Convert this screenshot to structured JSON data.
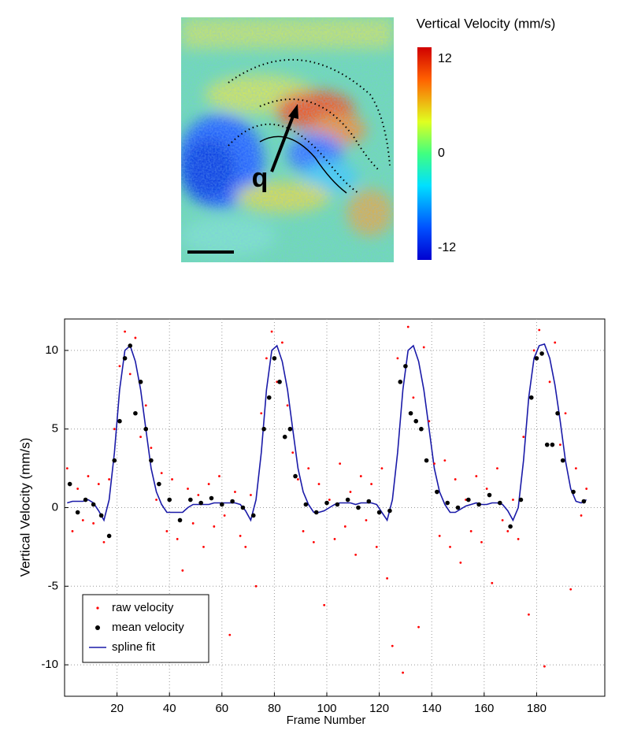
{
  "chart_data": [
    {
      "type": "image",
      "colorbar_title": "Vertical Velocity (mm/s)",
      "clim": [
        -13.5,
        13.5
      ],
      "cticks": [
        12,
        0,
        -12
      ],
      "annotation": "q"
    },
    {
      "type": "line",
      "xlabel": "Frame Number",
      "ylabel": "Vertical Velocity (mm/s)",
      "xlim": [
        0,
        206
      ],
      "ylim": [
        -12,
        12
      ],
      "xticks": [
        20,
        40,
        60,
        80,
        100,
        120,
        140,
        160,
        180
      ],
      "yticks": [
        -10,
        -5,
        0,
        5,
        10
      ],
      "grid": true,
      "legend": "lower left",
      "series": [
        {
          "name": "raw velocity",
          "kind": "scatter",
          "color": "#ff0000",
          "x": [
            1,
            3,
            5,
            7,
            9,
            11,
            13,
            15,
            17,
            19,
            21,
            23,
            25,
            27,
            29,
            31,
            33,
            35,
            37,
            39,
            41,
            43,
            45,
            47,
            49,
            51,
            53,
            55,
            57,
            59,
            61,
            63,
            65,
            67,
            69,
            71,
            73,
            75,
            77,
            79,
            81,
            83,
            85,
            87,
            89,
            91,
            93,
            95,
            97,
            99,
            101,
            103,
            105,
            107,
            109,
            111,
            113,
            115,
            117,
            119,
            121,
            123,
            125,
            127,
            129,
            131,
            133,
            135,
            137,
            139,
            141,
            143,
            145,
            147,
            149,
            151,
            153,
            155,
            157,
            159,
            161,
            163,
            165,
            167,
            169,
            171,
            173,
            175,
            177,
            179,
            181,
            183,
            185,
            187,
            189,
            191,
            193,
            195,
            197,
            199
          ],
          "values": [
            2.5,
            -1.5,
            1.2,
            -0.8,
            2.0,
            -1.0,
            1.5,
            -2.2,
            1.8,
            5.0,
            9.0,
            11.2,
            8.5,
            10.8,
            4.5,
            6.5,
            3.8,
            0.5,
            2.2,
            -1.5,
            1.8,
            -2.0,
            -4.0,
            1.2,
            -1.0,
            0.8,
            -2.5,
            1.5,
            -1.2,
            2.0,
            -0.5,
            -8.1,
            1.0,
            -1.8,
            -2.5,
            0.8,
            -5.0,
            6.0,
            9.5,
            11.2,
            8.0,
            10.5,
            6.5,
            3.5,
            1.8,
            -1.5,
            2.5,
            -2.2,
            1.5,
            -6.2,
            0.5,
            -2.0,
            2.8,
            -1.2,
            1.0,
            -3.0,
            2.0,
            -0.8,
            1.5,
            -2.5,
            2.5,
            -4.5,
            -8.8,
            9.5,
            -10.5,
            11.5,
            7.0,
            -7.6,
            10.2,
            5.5,
            2.8,
            -1.8,
            3.0,
            -2.5,
            1.8,
            -3.5,
            0.5,
            -1.5,
            2.0,
            -2.2,
            1.2,
            -4.8,
            2.5,
            -0.8,
            -1.5,
            0.5,
            -2.0,
            4.5,
            -6.8,
            10.0,
            11.3,
            -10.1,
            8.0,
            10.5,
            4.0,
            6.0,
            -5.2,
            2.5,
            -0.5,
            1.2
          ]
        },
        {
          "name": "mean velocity",
          "kind": "scatter",
          "color": "#000000",
          "x": [
            2,
            5,
            8,
            11,
            14,
            17,
            19,
            21,
            23,
            25,
            27,
            29,
            31,
            33,
            36,
            40,
            44,
            48,
            52,
            56,
            60,
            64,
            68,
            72,
            76,
            78,
            80,
            82,
            84,
            86,
            88,
            92,
            96,
            100,
            104,
            108,
            112,
            116,
            120,
            124,
            128,
            130,
            132,
            134,
            136,
            138,
            142,
            146,
            150,
            154,
            158,
            162,
            166,
            170,
            174,
            178,
            180,
            182,
            184,
            186,
            188,
            190,
            194,
            198
          ],
          "values": [
            1.5,
            -0.3,
            0.5,
            0.2,
            -0.5,
            -1.8,
            3,
            5.5,
            9.5,
            10.3,
            6,
            8,
            5,
            3,
            1.5,
            0.5,
            -0.8,
            0.5,
            0.3,
            0.6,
            0.2,
            0.4,
            0,
            -0.5,
            5,
            7,
            9.5,
            8,
            4.5,
            5,
            2,
            0.2,
            -0.3,
            0.3,
            0.2,
            0.5,
            0,
            0.4,
            -0.3,
            -0.2,
            8,
            9,
            6,
            5.5,
            5,
            3,
            1,
            0.3,
            0,
            0.5,
            0.2,
            0.8,
            0.3,
            -1.2,
            0.5,
            7,
            9.5,
            9.8,
            4,
            4,
            6,
            3,
            1,
            0.4
          ]
        },
        {
          "name": "spline fit",
          "kind": "line",
          "color": "#1a1aa8",
          "x": [
            1,
            3,
            5,
            7,
            9,
            11,
            13,
            15,
            17,
            19,
            21,
            23,
            25,
            27,
            29,
            31,
            33,
            35,
            37,
            39,
            41,
            43,
            45,
            47,
            49,
            51,
            53,
            55,
            57,
            59,
            61,
            63,
            65,
            67,
            69,
            71,
            73,
            75,
            77,
            79,
            81,
            83,
            85,
            87,
            89,
            91,
            93,
            95,
            97,
            99,
            101,
            103,
            105,
            107,
            109,
            111,
            113,
            115,
            117,
            119,
            121,
            123,
            125,
            127,
            129,
            131,
            133,
            135,
            137,
            139,
            141,
            143,
            145,
            147,
            149,
            151,
            153,
            155,
            157,
            159,
            161,
            163,
            165,
            167,
            169,
            171,
            173,
            175,
            177,
            179,
            181,
            183,
            185,
            187,
            189,
            191,
            193,
            195,
            197,
            199
          ],
          "values": [
            0.3,
            0.4,
            0.4,
            0.4,
            0.5,
            0.3,
            -0.2,
            -0.8,
            0.5,
            3.5,
            7.5,
            10.0,
            10.3,
            9.3,
            7.5,
            5.0,
            2.5,
            1.0,
            0.2,
            -0.3,
            -0.3,
            -0.3,
            -0.3,
            0.0,
            0.2,
            0.2,
            0.2,
            0.2,
            0.3,
            0.3,
            0.3,
            0.3,
            0.3,
            0.2,
            -0.2,
            -0.8,
            0.5,
            3.5,
            7.5,
            10.0,
            10.3,
            9.3,
            7.5,
            5.0,
            2.5,
            1.0,
            0.2,
            -0.3,
            -0.3,
            -0.2,
            0.0,
            0.2,
            0.3,
            0.3,
            0.3,
            0.2,
            0.3,
            0.3,
            0.3,
            0.2,
            -0.3,
            -0.8,
            0.5,
            3.5,
            7.5,
            10.0,
            10.3,
            9.3,
            7.5,
            5.0,
            2.5,
            1.0,
            0.2,
            -0.3,
            -0.3,
            -0.1,
            0.1,
            0.2,
            0.3,
            0.2,
            0.2,
            0.3,
            0.3,
            0.2,
            -0.2,
            -0.8,
            0.0,
            3.0,
            7.0,
            9.5,
            10.3,
            10.4,
            9.5,
            7.8,
            5.5,
            3.0,
            1.2,
            0.4,
            0.3,
            0.5
          ]
        }
      ]
    }
  ]
}
